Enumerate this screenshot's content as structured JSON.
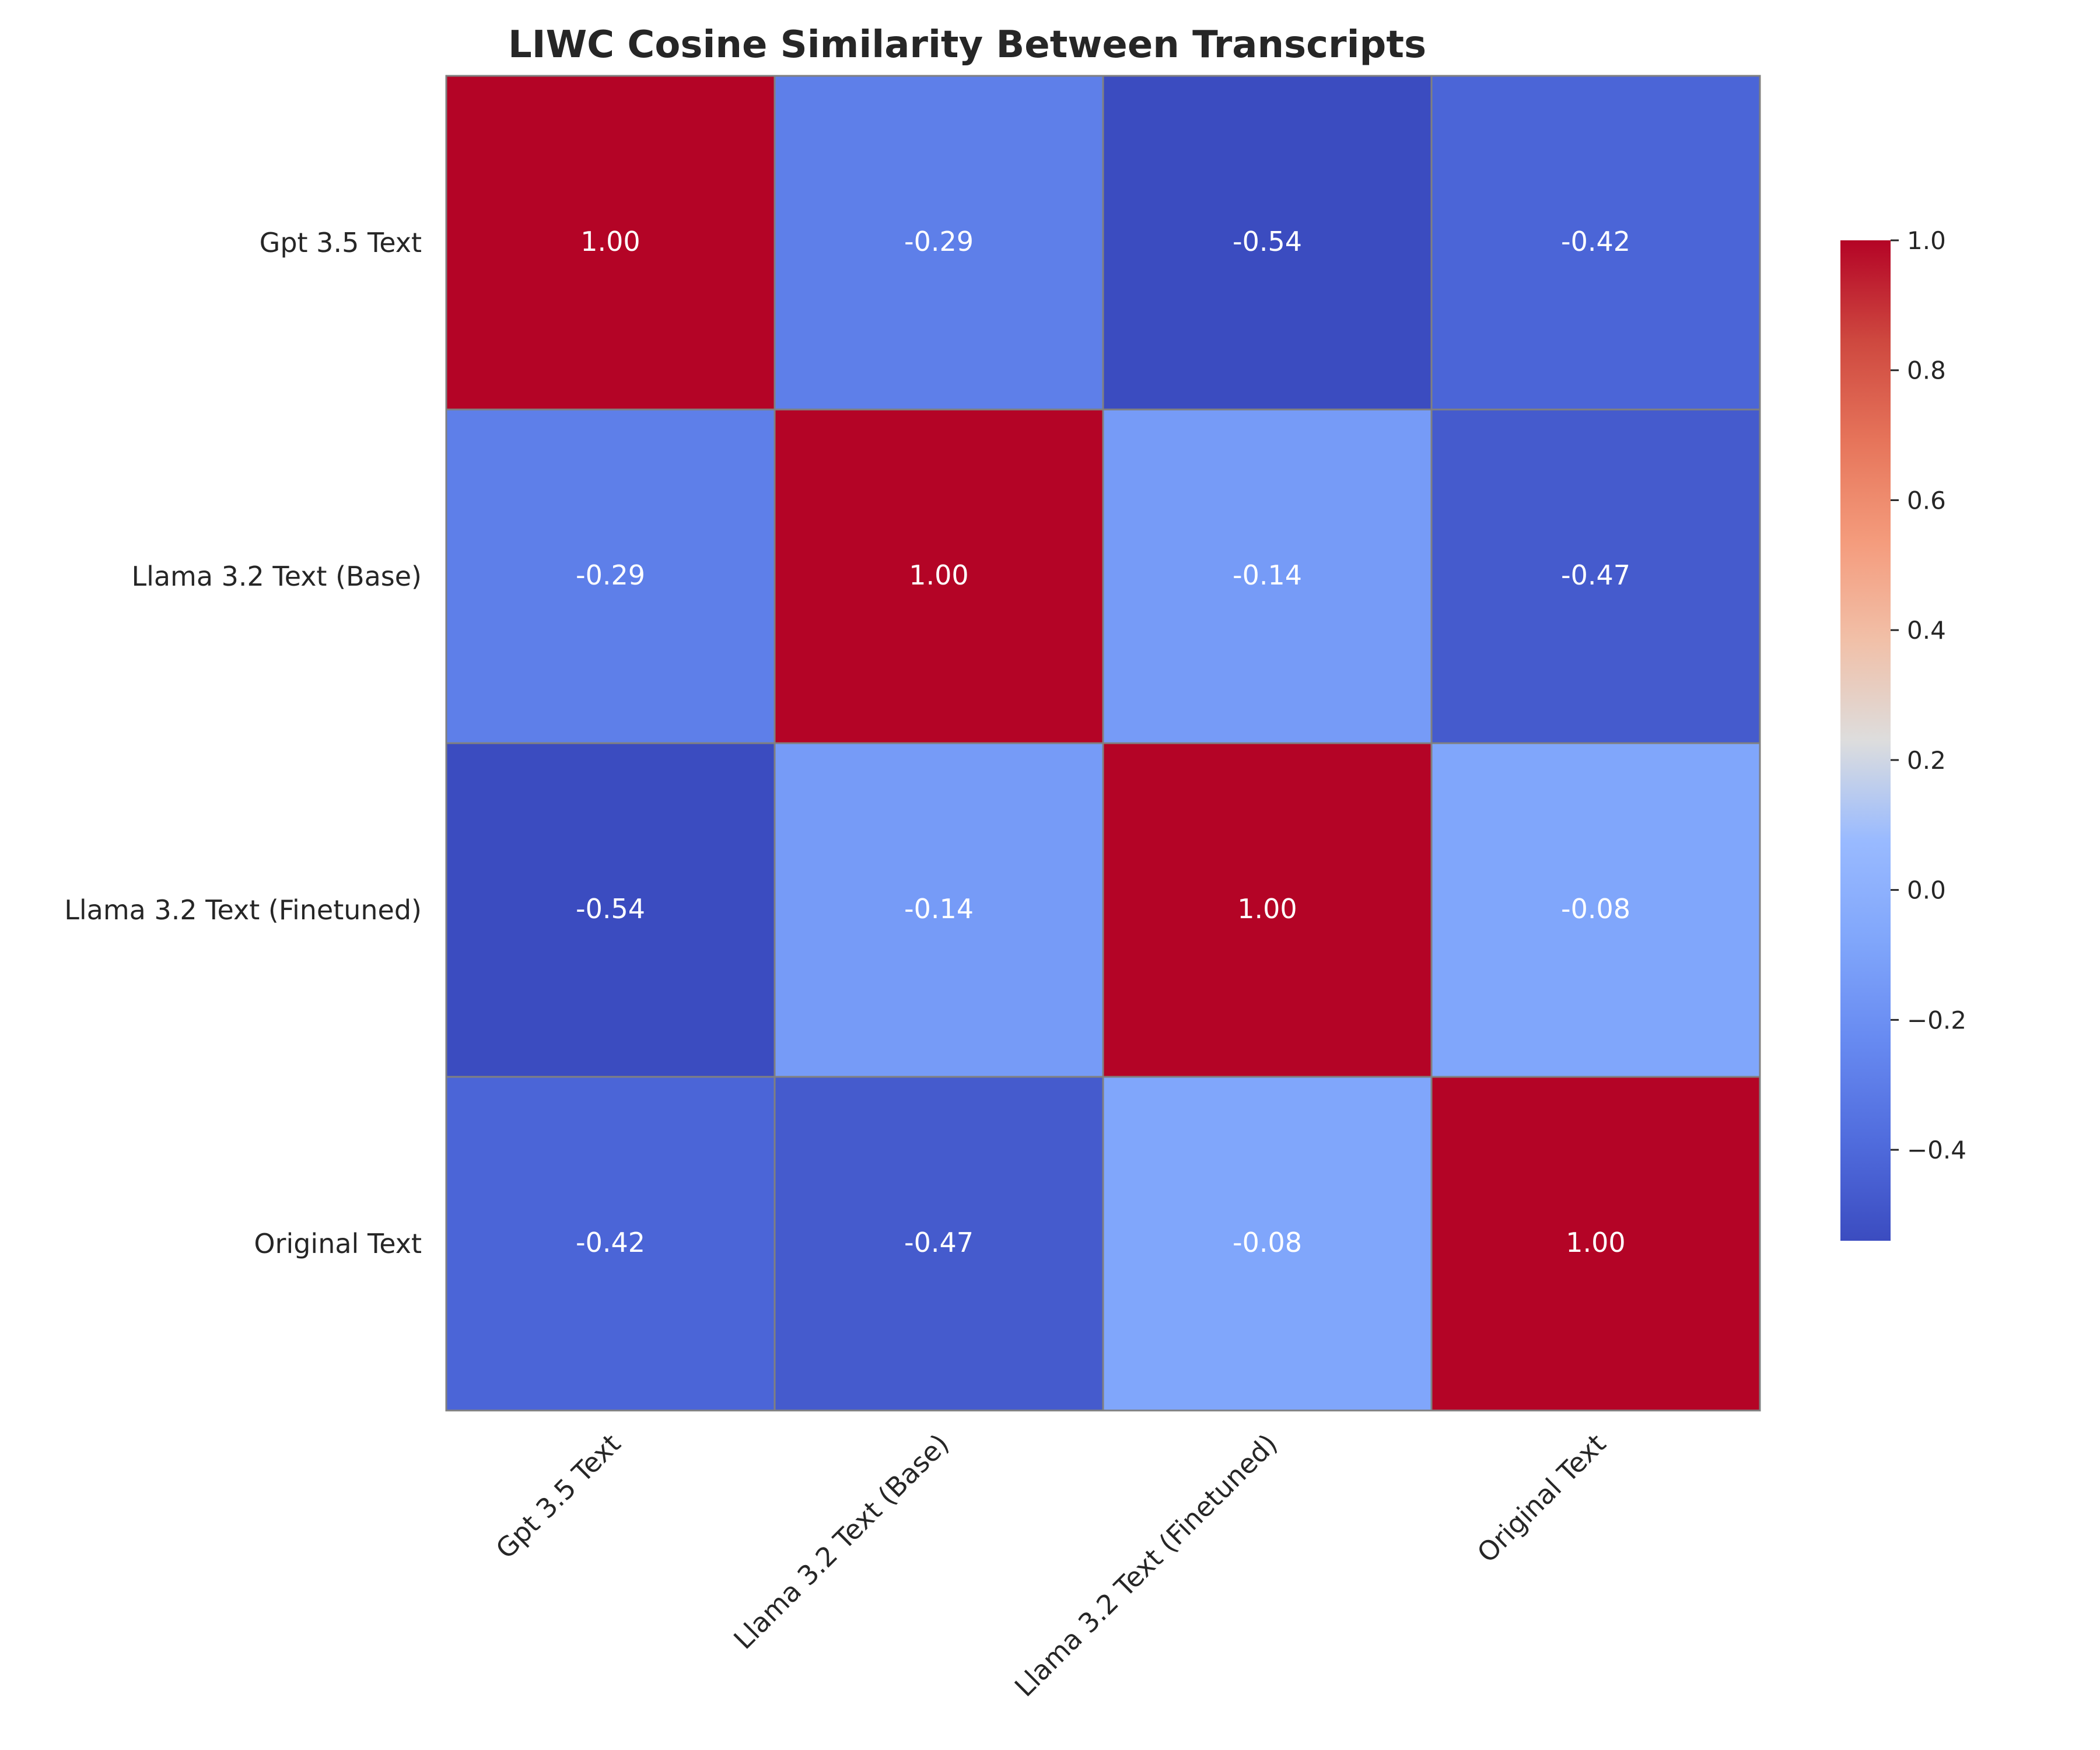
{
  "chart_data": {
    "type": "heatmap",
    "title": "LIWC Cosine Similarity Between Transcripts",
    "rows": [
      "Gpt 3.5 Text",
      "Llama 3.2 Text (Base)",
      "Llama 3.2 Text (Finetuned)",
      "Original Text"
    ],
    "columns": [
      "Gpt 3.5 Text",
      "Llama 3.2 Text (Base)",
      "Llama 3.2 Text (Finetuned)",
      "Original Text"
    ],
    "values": [
      [
        1.0,
        -0.29,
        -0.54,
        -0.42
      ],
      [
        -0.29,
        1.0,
        -0.14,
        -0.47
      ],
      [
        -0.54,
        -0.14,
        1.0,
        -0.08
      ],
      [
        -0.42,
        -0.47,
        -0.08,
        1.0
      ]
    ],
    "value_format": "0.00",
    "colormap": "coolwarm",
    "vmin": -0.54,
    "vmax": 1.0,
    "colorbar_ticks": [
      "−0.4",
      "−0.2",
      "0.0",
      "0.2",
      "0.4",
      "0.6",
      "0.8",
      "1.0"
    ],
    "colorbar_tick_values": [
      -0.4,
      -0.2,
      0.0,
      0.2,
      0.4,
      0.6,
      0.8,
      1.0
    ],
    "grid_color": "#808080",
    "xlabel": "",
    "ylabel": ""
  }
}
